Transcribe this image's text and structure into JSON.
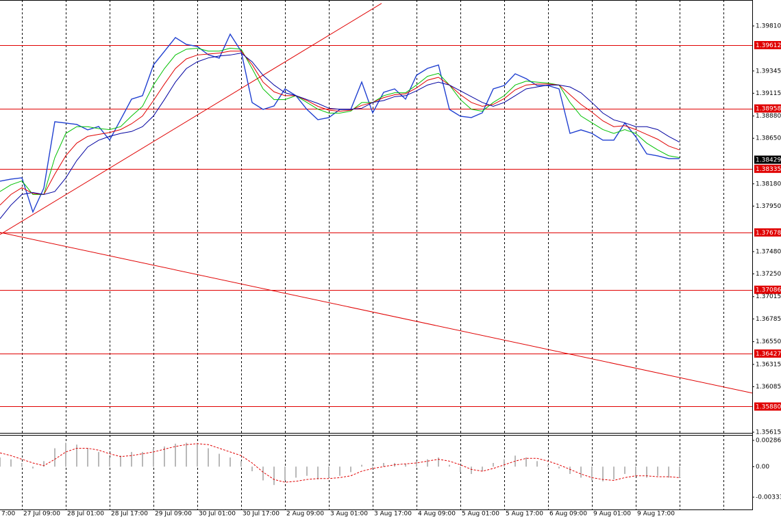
{
  "chart_data": [
    {
      "type": "line",
      "categories": [
        "7:00",
        null,
        "27 Jul 09:00",
        null,
        null,
        null,
        "28 Jul 01:00",
        null,
        null,
        null,
        "28 Jul 17:00",
        null,
        null,
        null,
        "29 Jul 09:00",
        null,
        null,
        null,
        "30 Jul 01:00",
        null,
        null,
        null,
        "30 Jul 17:00",
        null,
        null,
        null,
        "2 Aug 09:00",
        null,
        null,
        null,
        "3 Aug 01:00",
        null,
        null,
        null,
        "3 Aug 17:00",
        null,
        null,
        null,
        "4 Aug 09:00",
        null,
        null,
        null,
        "5 Aug 01:00",
        null,
        null,
        null,
        "5 Aug 17:00",
        null,
        null,
        null,
        "6 Aug 09:00",
        null,
        null,
        null,
        "9 Aug 01:00",
        null,
        null,
        null,
        "9 Aug 17:00",
        null,
        null,
        null,
        null
      ],
      "series": [
        {
          "color": "#1f3fd0",
          "width": 1.4,
          "values": [
            1.38207,
            1.38228,
            1.38242,
            1.37889,
            1.38136,
            1.38821,
            1.38807,
            1.38793,
            1.38737,
            1.38772,
            1.38631,
            1.38842,
            1.39054,
            1.3909,
            1.39407,
            1.39548,
            1.3969,
            1.39619,
            1.39598,
            1.39513,
            1.39478,
            1.39725,
            1.39548,
            1.39019,
            1.38948,
            1.38984,
            1.3916,
            1.3909,
            1.38948,
            1.38842,
            1.38864,
            1.38948,
            1.38948,
            1.39231,
            1.38913,
            1.39125,
            1.3916,
            1.39054,
            1.39301,
            1.39372,
            1.39407,
            1.38948,
            1.38878,
            1.38864,
            1.38913,
            1.3916,
            1.39195,
            1.39316,
            1.39266,
            1.39195,
            1.39195,
            1.3916,
            1.38701,
            1.38737,
            1.38701,
            1.38631,
            1.38631,
            1.38807,
            1.38666,
            1.38489,
            1.38468,
            1.3844,
            1.3844
          ]
        },
        {
          "color": "#00c000",
          "width": 1,
          "values": [
            1.381,
            1.3817,
            1.3821,
            1.3807,
            1.3807,
            1.3845,
            1.387,
            1.3877,
            1.3877,
            1.3875,
            1.3874,
            1.3877,
            1.3888,
            1.3898,
            1.392,
            1.3937,
            1.3951,
            1.3957,
            1.3958,
            1.3955,
            1.3955,
            1.3958,
            1.3957,
            1.3937,
            1.3916,
            1.3905,
            1.3905,
            1.3909,
            1.3902,
            1.3895,
            1.3891,
            1.3891,
            1.3893,
            1.3902,
            1.3902,
            1.3909,
            1.3912,
            1.3912,
            1.392,
            1.3929,
            1.3932,
            1.392,
            1.3905,
            1.3895,
            1.3893,
            1.3902,
            1.3909,
            1.392,
            1.3924,
            1.3923,
            1.3922,
            1.392,
            1.3902,
            1.3888,
            1.3881,
            1.3874,
            1.387,
            1.3874,
            1.387,
            1.386,
            1.3853,
            1.3847,
            1.3845
          ]
        },
        {
          "color": "#e00000",
          "width": 1,
          "values": [
            1.3796,
            1.3807,
            1.3814,
            1.3808,
            1.3807,
            1.3828,
            1.3847,
            1.386,
            1.3867,
            1.3869,
            1.3871,
            1.3874,
            1.388,
            1.3888,
            1.3904,
            1.3921,
            1.3937,
            1.3947,
            1.3951,
            1.3952,
            1.3953,
            1.3955,
            1.3955,
            1.3941,
            1.3923,
            1.3913,
            1.3909,
            1.3909,
            1.3904,
            1.3898,
            1.3894,
            1.3893,
            1.3894,
            1.3899,
            1.3902,
            1.3907,
            1.391,
            1.3911,
            1.3917,
            1.3925,
            1.3928,
            1.392,
            1.391,
            1.3902,
            1.3898,
            1.39,
            1.3906,
            1.3915,
            1.392,
            1.3921,
            1.3921,
            1.392,
            1.391,
            1.39,
            1.3892,
            1.3883,
            1.3877,
            1.3878,
            1.3874,
            1.3869,
            1.3864,
            1.3857,
            1.3853
          ]
        },
        {
          "color": "#0000a0",
          "width": 1,
          "values": [
            1.3782,
            1.3796,
            1.3807,
            1.3809,
            1.3807,
            1.381,
            1.3824,
            1.3842,
            1.3856,
            1.3863,
            1.3867,
            1.387,
            1.3872,
            1.3877,
            1.3888,
            1.3905,
            1.3923,
            1.3937,
            1.3944,
            1.3948,
            1.395,
            1.3951,
            1.3953,
            1.3944,
            1.393,
            1.392,
            1.3912,
            1.3909,
            1.3905,
            1.3901,
            1.3896,
            1.3895,
            1.3895,
            1.3896,
            1.3902,
            1.3904,
            1.3908,
            1.3909,
            1.3914,
            1.392,
            1.3923,
            1.392,
            1.3914,
            1.3908,
            1.3902,
            1.3898,
            1.3902,
            1.3909,
            1.3916,
            1.3918,
            1.392,
            1.392,
            1.3918,
            1.3912,
            1.3902,
            1.3891,
            1.3884,
            1.3881,
            1.3877,
            1.3877,
            1.3874,
            1.3867,
            1.3861
          ]
        }
      ],
      "ylim": [
        1.35615,
        1.40078
      ],
      "yticks": [
        {
          "value": 1.3981,
          "label": "1.39810"
        },
        1.39345,
        1.39115,
        {
          "value": 1.3888,
          "label": "1.38880"
        },
        {
          "value": 1.3865,
          "label": "1.38650"
        },
        {
          "value": 1.3818,
          "label": "1.38180"
        },
        {
          "value": 1.3795,
          "label": "1.37950"
        },
        {
          "value": 1.3748,
          "label": "1.37480"
        },
        {
          "value": 1.3725,
          "label": "1.37250"
        },
        1.37015,
        1.36785,
        {
          "value": 1.3655,
          "label": "1.36550"
        },
        1.36315,
        1.36085,
        1.35615
      ],
      "levels": [
        1.39612,
        1.38958,
        1.38335,
        1.37678,
        1.37086,
        1.36427,
        {
          "value": 1.3588,
          "label": "1.35880"
        }
      ],
      "level_color": "#e00000",
      "current_price": 1.38429,
      "trendlines": [
        {
          "x": [
            0,
            34.81
          ],
          "values": [
            1.37656,
            1.40043
          ]
        },
        {
          "x": [
            0,
            68.625
          ],
          "values": [
            1.37678,
            1.36019
          ]
        }
      ]
    },
    {
      "type": "bar",
      "series": [
        {
          "type": "bar",
          "color": "#b8b8b8",
          "values": [
            0.001,
            0.0008,
            0.0004,
            -0.0002,
            0.0006,
            0.002,
            0.0026,
            0.0024,
            0.002,
            0.0016,
            0.001,
            0.0012,
            0.0016,
            0.0016,
            0.002,
            0.0022,
            0.0025,
            0.0026,
            0.0026,
            0.002,
            0.0014,
            0.001,
            0.0006,
            -0.0005,
            -0.0015,
            -0.002,
            -0.0015,
            -0.0012,
            -0.001,
            -0.0014,
            -0.0012,
            -0.001,
            -0.0006,
            0.0002,
            -0.0002,
            0.0004,
            0.0004,
            0.0003,
            0.0006,
            0.0008,
            0.001,
            0.0002,
            -0.0006,
            -0.0008,
            -0.0005,
            0.0004,
            0.0008,
            0.0012,
            0.001,
            0.0006,
            0.0002,
            -0.0002,
            -0.0008,
            -0.0012,
            -0.0015,
            -0.0016,
            -0.0014,
            -0.0008,
            -0.001,
            -0.0012,
            -0.001,
            -0.0012,
            -0.0012
          ]
        },
        {
          "type": "line",
          "color": "#e00000",
          "dashed": true,
          "values": [
            0.0015,
            0.0012,
            0.0008,
            0.0004,
            0.0001,
            0.0008,
            0.0016,
            0.002,
            0.002,
            0.0018,
            0.0014,
            0.0011,
            0.0012,
            0.0014,
            0.0016,
            0.0019,
            0.0022,
            0.0024,
            0.0025,
            0.0024,
            0.002,
            0.0016,
            0.0012,
            0.0004,
            -0.0006,
            -0.0014,
            -0.0017,
            -0.0016,
            -0.0014,
            -0.0013,
            -0.0013,
            -0.0012,
            -0.001,
            -0.0005,
            -0.0002,
            0,
            0.0002,
            0.0003,
            0.0004,
            0.0006,
            0.0008,
            0.0006,
            0.0002,
            -0.0003,
            -0.0005,
            -0.0002,
            0.0002,
            0.0006,
            0.0009,
            0.0009,
            0.0006,
            0.0002,
            -0.0003,
            -0.0008,
            -0.0012,
            -0.0014,
            -0.0015,
            -0.0012,
            -0.001,
            -0.001,
            -0.0011,
            -0.0011,
            -0.0012
          ]
        }
      ],
      "ylim": [
        -0.00467,
        0.00338
      ],
      "yticks": [
        {
          "value": 0.002863,
          "label": "0.002863"
        },
        {
          "value": 0,
          "label": "0.00"
        },
        -0.00333
      ]
    }
  ]
}
